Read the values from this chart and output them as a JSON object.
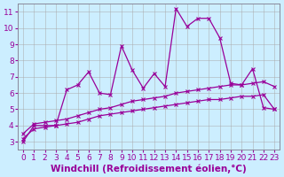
{
  "background_color": "#cceeff",
  "grid_color": "#aaaaaa",
  "line_color": "#990099",
  "xlabel": "Windchill (Refroidissement éolien,°C)",
  "xlabel_fontsize": 7.5,
  "tick_fontsize": 6.5,
  "yticks": [
    3,
    4,
    5,
    6,
    7,
    8,
    9,
    10,
    11
  ],
  "xticks": [
    0,
    1,
    2,
    3,
    4,
    5,
    6,
    7,
    8,
    9,
    10,
    11,
    12,
    13,
    14,
    15,
    16,
    17,
    18,
    19,
    20,
    21,
    22,
    23
  ],
  "xlim": [
    -0.5,
    23.5
  ],
  "ylim": [
    2.5,
    11.5
  ],
  "series1_x": [
    0,
    1,
    2,
    3,
    4,
    5,
    6,
    7,
    8,
    9,
    10,
    11,
    12,
    13,
    14,
    15,
    16,
    17,
    18,
    19,
    20,
    21,
    22,
    23
  ],
  "series1_y": [
    3.0,
    4.0,
    4.0,
    4.0,
    6.2,
    6.5,
    7.3,
    6.0,
    5.9,
    8.9,
    7.4,
    6.3,
    7.2,
    6.4,
    11.2,
    10.1,
    10.6,
    10.6,
    9.4,
    6.6,
    6.5,
    7.5,
    5.1,
    5.0
  ],
  "series2_x": [
    0,
    1,
    2,
    3,
    4,
    5,
    6,
    7,
    8,
    9,
    10,
    11,
    12,
    13,
    14,
    15,
    16,
    17,
    18,
    19,
    20,
    21,
    22,
    23
  ],
  "series2_y": [
    3.5,
    4.1,
    4.2,
    4.3,
    4.4,
    4.6,
    4.8,
    5.0,
    5.1,
    5.3,
    5.5,
    5.6,
    5.7,
    5.8,
    6.0,
    6.1,
    6.2,
    6.3,
    6.4,
    6.5,
    6.5,
    6.6,
    6.7,
    6.4
  ],
  "series3_x": [
    0,
    1,
    2,
    3,
    4,
    5,
    6,
    7,
    8,
    9,
    10,
    11,
    12,
    13,
    14,
    15,
    16,
    17,
    18,
    19,
    20,
    21,
    22,
    23
  ],
  "series3_y": [
    3.2,
    3.8,
    3.9,
    4.0,
    4.1,
    4.2,
    4.4,
    4.6,
    4.7,
    4.8,
    4.9,
    5.0,
    5.1,
    5.2,
    5.3,
    5.4,
    5.5,
    5.6,
    5.6,
    5.7,
    5.8,
    5.8,
    5.9,
    5.0
  ]
}
